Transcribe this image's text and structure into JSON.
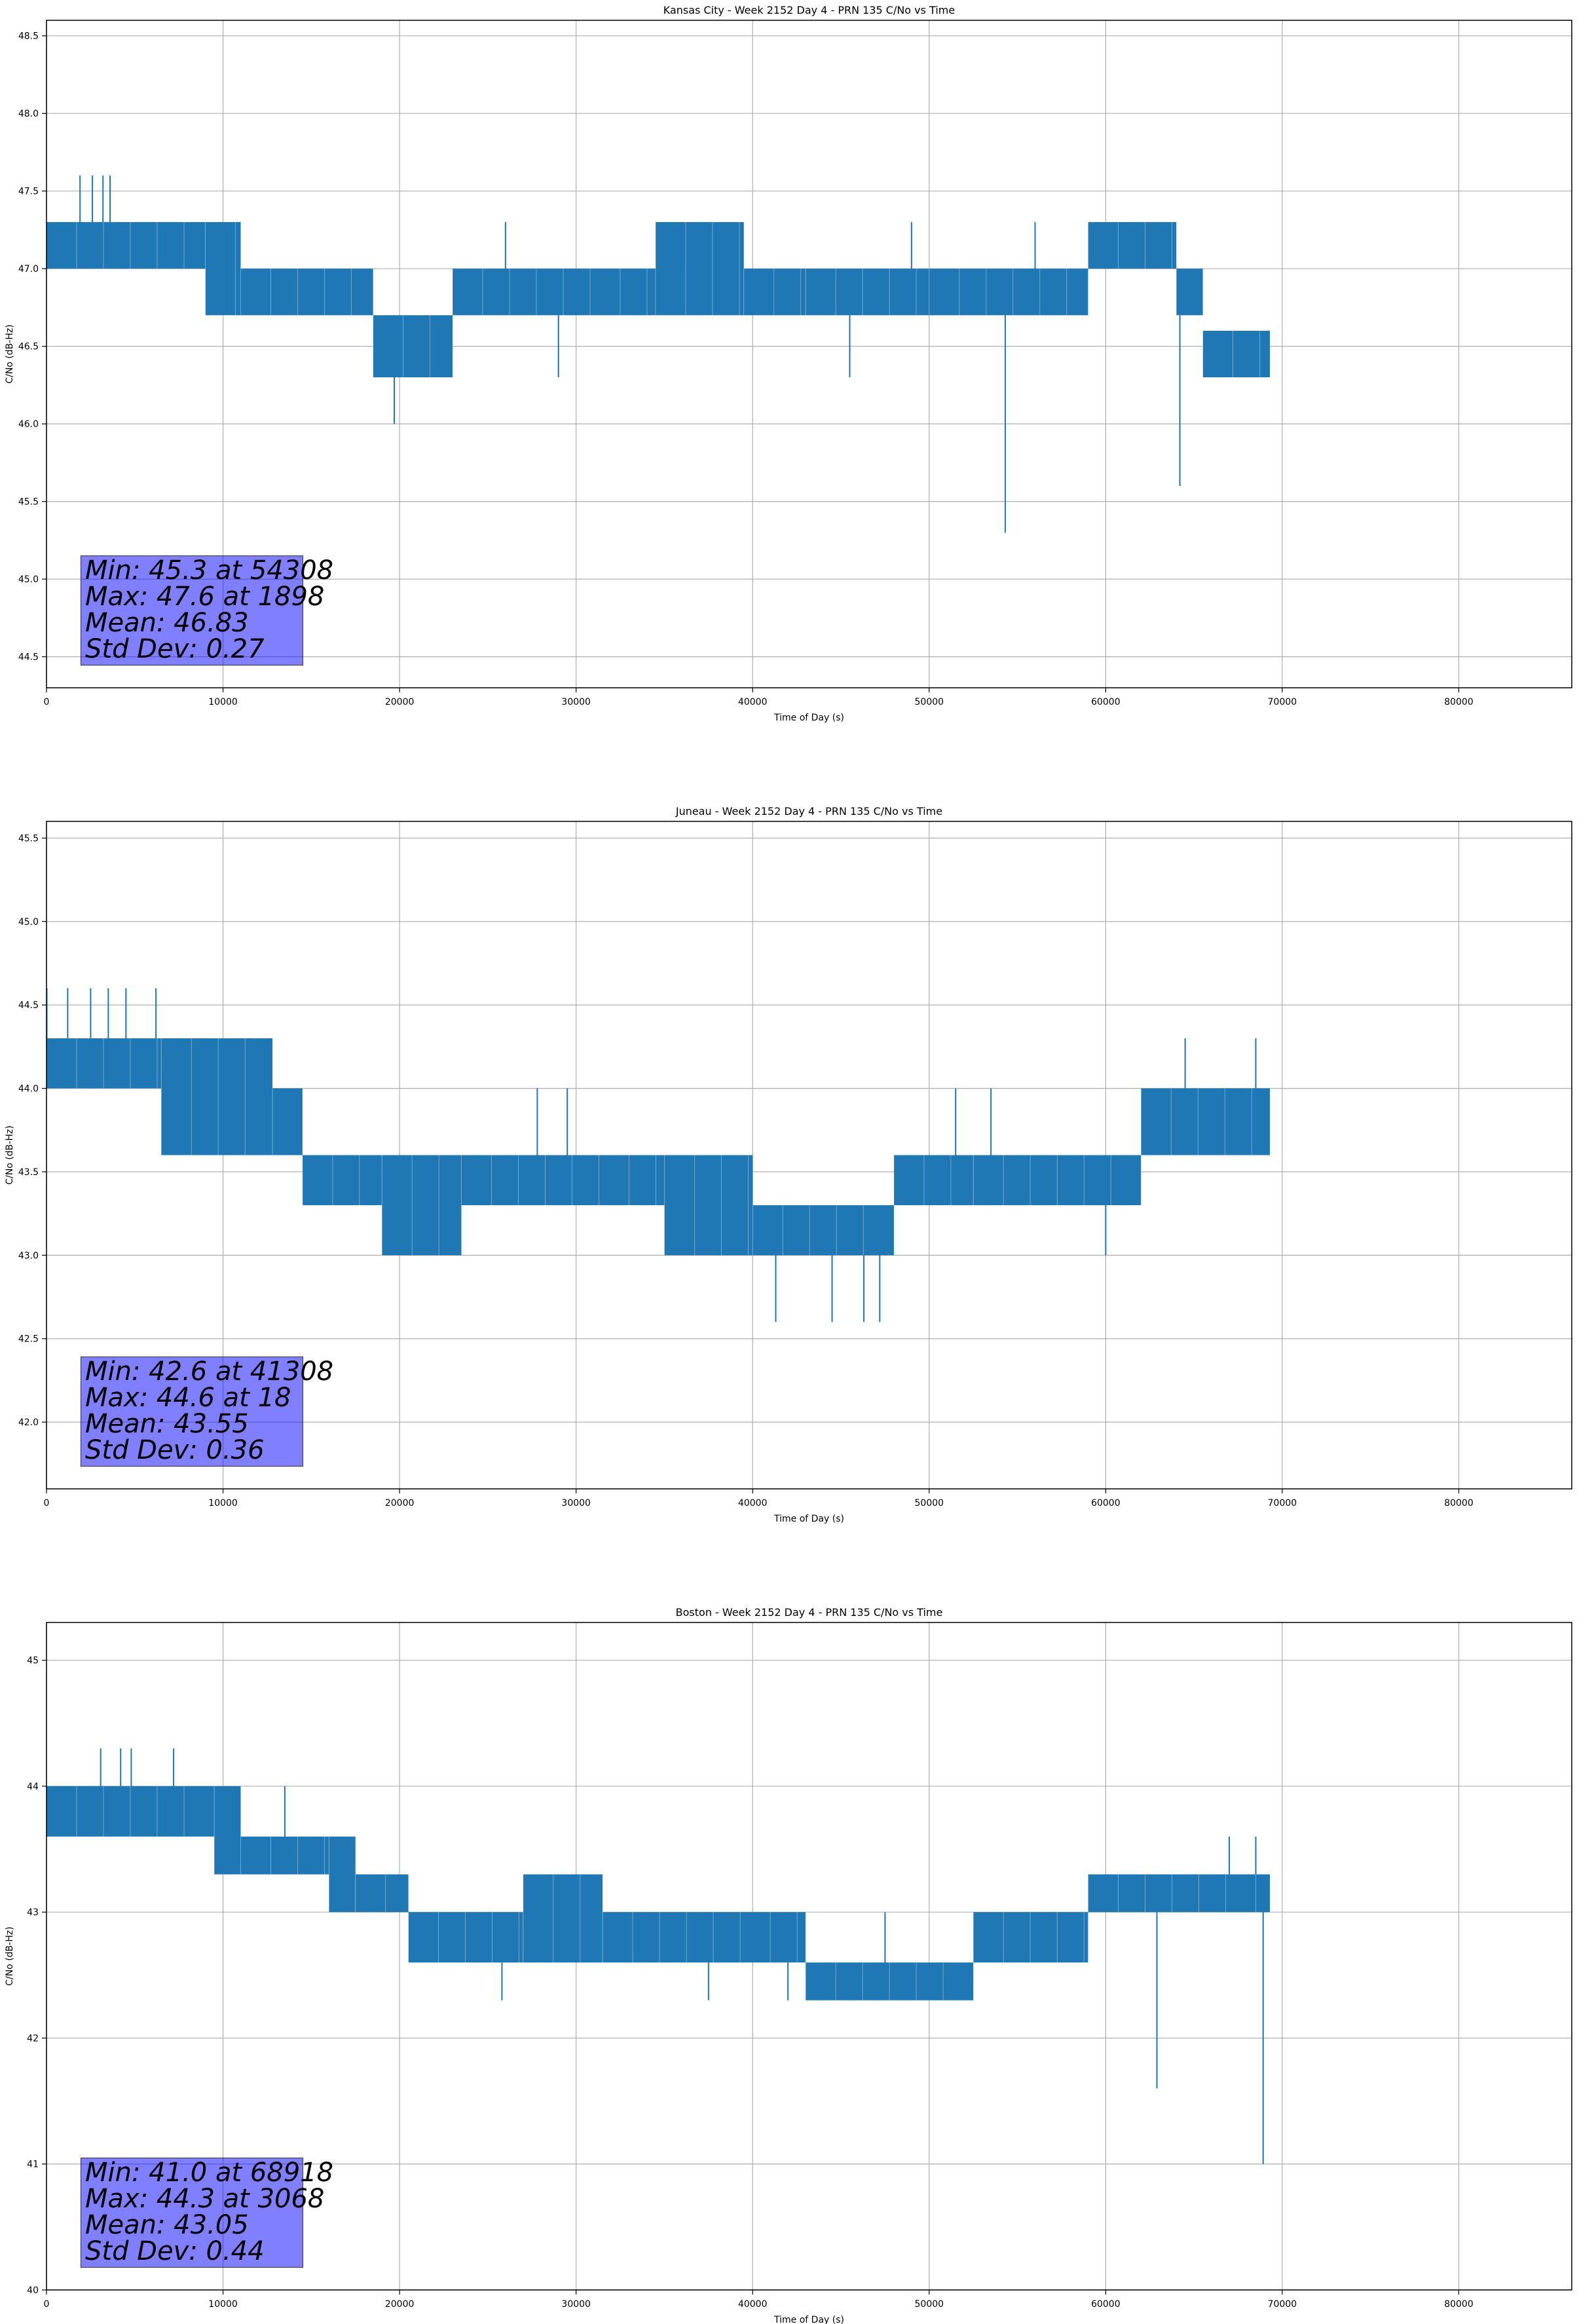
{
  "chart_data": [
    {
      "type": "line",
      "title": "Kansas City - Week 2152 Day 4 - PRN 135 C/No vs Time",
      "xlabel": "Time of Day (s)",
      "ylabel": "C/No (dB-Hz)",
      "xlim": [
        0,
        86400
      ],
      "ylim": [
        44.3,
        48.6
      ],
      "xticks": [
        0,
        10000,
        20000,
        30000,
        40000,
        50000,
        60000,
        70000,
        80000
      ],
      "yticks": [
        44.5,
        45.0,
        45.5,
        46.0,
        46.5,
        47.0,
        47.5,
        48.0,
        48.5
      ],
      "ytick_labels": [
        "44.5",
        "45.0",
        "45.5",
        "46.0",
        "46.5",
        "47.0",
        "47.5",
        "48.0",
        "48.5"
      ],
      "grid": true,
      "color": "#1f77b4",
      "series": [
        {
          "name": "PRN 135 C/No",
          "segments": [
            {
              "x0": 0,
              "x1": 9000,
              "lo": 47.0,
              "hi": 47.3
            },
            {
              "x0": 9000,
              "x1": 11000,
              "lo": 46.7,
              "hi": 47.3
            },
            {
              "x0": 11000,
              "x1": 18500,
              "lo": 46.7,
              "hi": 47.0
            },
            {
              "x0": 18500,
              "x1": 23000,
              "lo": 46.3,
              "hi": 46.7
            },
            {
              "x0": 23000,
              "x1": 34500,
              "lo": 46.7,
              "hi": 47.0
            },
            {
              "x0": 34500,
              "x1": 39500,
              "lo": 46.7,
              "hi": 47.3
            },
            {
              "x0": 39500,
              "x1": 43000,
              "lo": 46.7,
              "hi": 47.0
            },
            {
              "x0": 43000,
              "x1": 50000,
              "lo": 46.7,
              "hi": 47.0
            },
            {
              "x0": 50000,
              "x1": 59000,
              "lo": 46.7,
              "hi": 47.0
            },
            {
              "x0": 59000,
              "x1": 64000,
              "lo": 47.0,
              "hi": 47.3
            },
            {
              "x0": 64000,
              "x1": 65500,
              "lo": 46.7,
              "hi": 47.0
            },
            {
              "x0": 65500,
              "x1": 69300,
              "lo": 46.3,
              "hi": 46.6
            }
          ],
          "spikes": [
            {
              "x": 1898,
              "lo": 47.3,
              "hi": 47.6
            },
            {
              "x": 2600,
              "lo": 47.3,
              "hi": 47.6
            },
            {
              "x": 3200,
              "lo": 47.3,
              "hi": 47.6
            },
            {
              "x": 3600,
              "lo": 47.3,
              "hi": 47.6
            },
            {
              "x": 19700,
              "lo": 46.0,
              "hi": 46.7
            },
            {
              "x": 21500,
              "lo": 46.3,
              "hi": 46.7
            },
            {
              "x": 36000,
              "lo": 47.0,
              "hi": 47.3
            },
            {
              "x": 45500,
              "lo": 46.3,
              "hi": 46.7
            },
            {
              "x": 49000,
              "lo": 47.0,
              "hi": 47.3
            },
            {
              "x": 54308,
              "lo": 45.3,
              "hi": 46.7
            },
            {
              "x": 56000,
              "lo": 47.0,
              "hi": 47.3
            },
            {
              "x": 64200,
              "lo": 45.6,
              "hi": 46.7
            },
            {
              "x": 29000,
              "lo": 46.3,
              "hi": 46.7
            },
            {
              "x": 26000,
              "lo": 47.0,
              "hi": 47.3
            }
          ]
        }
      ],
      "annotation": {
        "min": "Min: 45.3 at 54308",
        "max": "Max: 47.6 at 1898",
        "mean": "Mean: 46.83",
        "std": "Std Dev: 0.27"
      }
    },
    {
      "type": "line",
      "title": "Juneau - Week 2152 Day 4 - PRN 135 C/No vs Time",
      "xlabel": "Time of Day (s)",
      "ylabel": "C/No (dB-Hz)",
      "xlim": [
        0,
        86400
      ],
      "ylim": [
        41.6,
        45.6
      ],
      "xticks": [
        0,
        10000,
        20000,
        30000,
        40000,
        50000,
        60000,
        70000,
        80000
      ],
      "yticks": [
        42.0,
        42.5,
        43.0,
        43.5,
        44.0,
        44.5,
        45.0,
        45.5
      ],
      "ytick_labels": [
        "42.0",
        "42.5",
        "43.0",
        "43.5",
        "44.0",
        "44.5",
        "45.0",
        "45.5"
      ],
      "grid": true,
      "color": "#1f77b4",
      "series": [
        {
          "name": "PRN 135 C/No",
          "segments": [
            {
              "x0": 0,
              "x1": 6500,
              "lo": 44.0,
              "hi": 44.3
            },
            {
              "x0": 6500,
              "x1": 12800,
              "lo": 43.6,
              "hi": 44.3
            },
            {
              "x0": 12800,
              "x1": 14500,
              "lo": 43.6,
              "hi": 44.0
            },
            {
              "x0": 14500,
              "x1": 19000,
              "lo": 43.3,
              "hi": 43.6
            },
            {
              "x0": 19000,
              "x1": 23500,
              "lo": 43.0,
              "hi": 43.6
            },
            {
              "x0": 23500,
              "x1": 35000,
              "lo": 43.3,
              "hi": 43.6
            },
            {
              "x0": 35000,
              "x1": 40000,
              "lo": 43.0,
              "hi": 43.6
            },
            {
              "x0": 40000,
              "x1": 48000,
              "lo": 43.0,
              "hi": 43.3
            },
            {
              "x0": 48000,
              "x1": 52500,
              "lo": 43.3,
              "hi": 43.6
            },
            {
              "x0": 52500,
              "x1": 62000,
              "lo": 43.3,
              "hi": 43.6
            },
            {
              "x0": 62000,
              "x1": 69300,
              "lo": 43.6,
              "hi": 44.0
            }
          ],
          "spikes": [
            {
              "x": 18,
              "lo": 44.3,
              "hi": 44.6
            },
            {
              "x": 1200,
              "lo": 44.3,
              "hi": 44.6
            },
            {
              "x": 2500,
              "lo": 44.3,
              "hi": 44.6
            },
            {
              "x": 3500,
              "lo": 44.3,
              "hi": 44.6
            },
            {
              "x": 4500,
              "lo": 44.3,
              "hi": 44.6
            },
            {
              "x": 6200,
              "lo": 44.3,
              "hi": 44.6
            },
            {
              "x": 27800,
              "lo": 43.6,
              "hi": 44.0
            },
            {
              "x": 29500,
              "lo": 43.6,
              "hi": 44.0
            },
            {
              "x": 41308,
              "lo": 42.6,
              "hi": 43.3
            },
            {
              "x": 44500,
              "lo": 42.6,
              "hi": 43.0
            },
            {
              "x": 46300,
              "lo": 42.6,
              "hi": 43.0
            },
            {
              "x": 47200,
              "lo": 42.6,
              "hi": 43.0
            },
            {
              "x": 51500,
              "lo": 43.6,
              "hi": 44.0
            },
            {
              "x": 53500,
              "lo": 43.6,
              "hi": 44.0
            },
            {
              "x": 64500,
              "lo": 44.0,
              "hi": 44.3
            },
            {
              "x": 68500,
              "lo": 44.0,
              "hi": 44.3
            },
            {
              "x": 60000,
              "lo": 43.0,
              "hi": 43.3
            }
          ]
        }
      ],
      "annotation": {
        "min": "Min: 42.6 at 41308",
        "max": "Max: 44.6 at 18",
        "mean": "Mean: 43.55",
        "std": "Std Dev: 0.36"
      }
    },
    {
      "type": "line",
      "title": "Boston - Week 2152 Day 4 - PRN 135 C/No vs Time",
      "xlabel": "Time of Day (s)",
      "ylabel": "C/No (dB-Hz)",
      "xlim": [
        0,
        86400
      ],
      "ylim": [
        40.0,
        45.3
      ],
      "xticks": [
        0,
        10000,
        20000,
        30000,
        40000,
        50000,
        60000,
        70000,
        80000
      ],
      "yticks": [
        40,
        41,
        42,
        43,
        44,
        45
      ],
      "ytick_labels": [
        "40",
        "41",
        "42",
        "43",
        "44",
        "45"
      ],
      "grid": true,
      "color": "#1f77b4",
      "series": [
        {
          "name": "PRN 135 C/No",
          "segments": [
            {
              "x0": 0,
              "x1": 9500,
              "lo": 43.6,
              "hi": 44.0
            },
            {
              "x0": 9500,
              "x1": 11000,
              "lo": 43.3,
              "hi": 44.0
            },
            {
              "x0": 11000,
              "x1": 16000,
              "lo": 43.3,
              "hi": 43.6
            },
            {
              "x0": 16000,
              "x1": 17500,
              "lo": 43.0,
              "hi": 43.6
            },
            {
              "x0": 17500,
              "x1": 20500,
              "lo": 43.0,
              "hi": 43.3
            },
            {
              "x0": 20500,
              "x1": 27000,
              "lo": 42.6,
              "hi": 43.0
            },
            {
              "x0": 27000,
              "x1": 31500,
              "lo": 42.6,
              "hi": 43.3
            },
            {
              "x0": 31500,
              "x1": 43000,
              "lo": 42.6,
              "hi": 43.0
            },
            {
              "x0": 43000,
              "x1": 52500,
              "lo": 42.3,
              "hi": 42.6
            },
            {
              "x0": 52500,
              "x1": 59000,
              "lo": 42.6,
              "hi": 43.0
            },
            {
              "x0": 59000,
              "x1": 69300,
              "lo": 43.0,
              "hi": 43.3
            }
          ],
          "spikes": [
            {
              "x": 3068,
              "lo": 44.0,
              "hi": 44.3
            },
            {
              "x": 4200,
              "lo": 44.0,
              "hi": 44.3
            },
            {
              "x": 4800,
              "lo": 44.0,
              "hi": 44.3
            },
            {
              "x": 7200,
              "lo": 44.0,
              "hi": 44.3
            },
            {
              "x": 13500,
              "lo": 43.6,
              "hi": 44.0
            },
            {
              "x": 25800,
              "lo": 42.3,
              "hi": 42.6
            },
            {
              "x": 37500,
              "lo": 42.3,
              "hi": 42.6
            },
            {
              "x": 42000,
              "lo": 42.3,
              "hi": 42.6
            },
            {
              "x": 62900,
              "lo": 41.6,
              "hi": 43.0
            },
            {
              "x": 67000,
              "lo": 43.3,
              "hi": 43.6
            },
            {
              "x": 68500,
              "lo": 43.3,
              "hi": 43.6
            },
            {
              "x": 68918,
              "lo": 41.0,
              "hi": 43.3
            },
            {
              "x": 47500,
              "lo": 42.6,
              "hi": 43.0
            }
          ]
        }
      ],
      "annotation": {
        "min": "Min: 41.0 at 68918",
        "max": "Max: 44.3 at 3068",
        "mean": "Mean: 43.05",
        "std": "Std Dev: 0.44"
      }
    }
  ]
}
